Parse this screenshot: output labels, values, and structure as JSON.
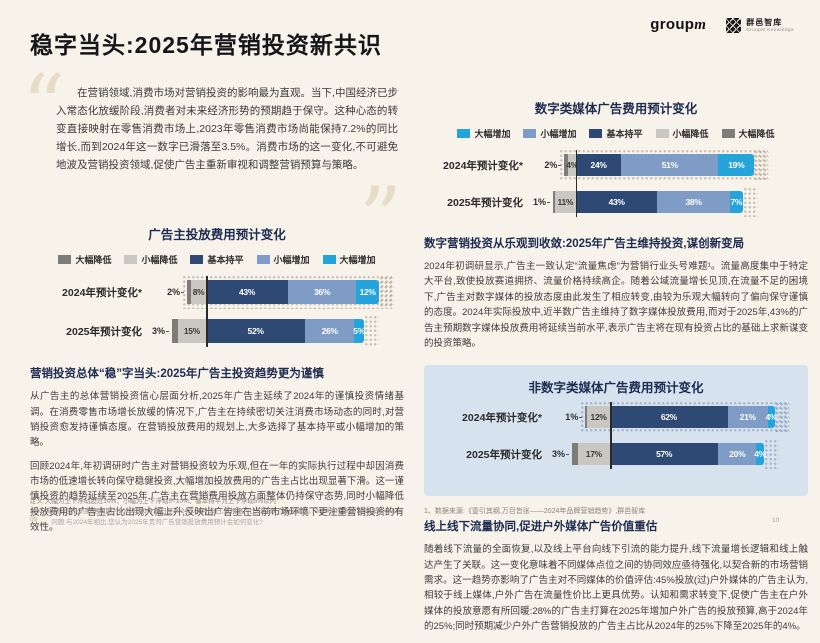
{
  "page": {
    "title": "稳字当头:2025年营销投资新共识",
    "page_no_left": "09",
    "page_no_right": "10"
  },
  "logos": {
    "groupm_text": "group",
    "groupm_m": "m",
    "kb_name": "群邑智库",
    "kb_sub": "GroupM Knowledge"
  },
  "icons": {
    "open_quote": "“",
    "close_quote": "”"
  },
  "quote": {
    "text": "在营销领域,消费市场对营销投资的影响最为直观。当下,中国经济已步入常态化放缓阶段,消费者对未来经济形势的预期趋于保守。这种心态的转变直接映射在零售消费市场上,2023年零售消费市场尚能保持7.2%的同比增长,而到2024年这一数字已滑落至3.5%。消费市场的这一变化,不可避免地波及营销投资领域,促使广告主重新审视和调整营销预算与策略。"
  },
  "palette": {
    "sharp_decrease": {
      "color": "#7c7c79",
      "text": "#ffffff",
      "side": "dec"
    },
    "slight_decrease": {
      "color": "#c9c7c2",
      "text": "#3a3a3a",
      "side": "dec"
    },
    "flat": {
      "color": "#2e4a74",
      "text": "#ffffff",
      "side": "inc"
    },
    "slight_increase": {
      "color": "#7f9cc6",
      "text": "#ffffff",
      "side": "inc"
    },
    "sharp_increase": {
      "color": "#25a4dc",
      "text": "#ffffff",
      "side": "inc"
    }
  },
  "chart_data": [
    {
      "type": "bar",
      "orientation": "horizontal-stacked",
      "title": "广告主投放费用预计变化",
      "legend": [
        {
          "key": "sharp_decrease",
          "label": "大幅降低"
        },
        {
          "key": "slight_decrease",
          "label": "小幅降低"
        },
        {
          "key": "flat",
          "label": "基本持平"
        },
        {
          "key": "slight_increase",
          "label": "小幅增加"
        },
        {
          "key": "sharp_increase",
          "label": "大幅增加"
        }
      ],
      "rows": [
        {
          "label": "2024年预计变化*",
          "outside": "2%",
          "dotted": true,
          "segments": [
            {
              "key": "sharp_decrease",
              "value": 2,
              "text": ""
            },
            {
              "key": "slight_decrease",
              "value": 8,
              "text": "8%"
            },
            {
              "key": "flat",
              "value": 43,
              "text": "43%"
            },
            {
              "key": "slight_increase",
              "value": 36,
              "text": "36%"
            },
            {
              "key": "sharp_increase",
              "value": 12,
              "text": "12%"
            }
          ]
        },
        {
          "label": "2025年预计变化",
          "outside": "3%",
          "dotted": false,
          "segments": [
            {
              "key": "sharp_decrease",
              "value": 3,
              "text": ""
            },
            {
              "key": "slight_decrease",
              "value": 15,
              "text": "15%"
            },
            {
              "key": "flat",
              "value": 52,
              "text": "52%"
            },
            {
              "key": "slight_increase",
              "value": 26,
              "text": "26%"
            },
            {
              "key": "sharp_increase",
              "value": 5,
              "text": "5%"
            }
          ]
        }
      ]
    },
    {
      "type": "bar",
      "orientation": "horizontal-stacked",
      "title": "数字类媒体广告费用预计变化",
      "legend": [
        {
          "key": "sharp_increase",
          "label": "大幅增加"
        },
        {
          "key": "slight_increase",
          "label": "小幅增加"
        },
        {
          "key": "flat",
          "label": "基本持平"
        },
        {
          "key": "slight_decrease",
          "label": "小幅降低"
        },
        {
          "key": "sharp_decrease",
          "label": "大幅降低"
        }
      ],
      "rows": [
        {
          "label": "2024年预计变化*",
          "outside": "2%",
          "dotted": true,
          "segments": [
            {
              "key": "sharp_decrease",
              "value": 2,
              "text": ""
            },
            {
              "key": "slight_decrease",
              "value": 4,
              "text": "4%"
            },
            {
              "key": "flat",
              "value": 24,
              "text": "24%"
            },
            {
              "key": "slight_increase",
              "value": 51,
              "text": "51%"
            },
            {
              "key": "sharp_increase",
              "value": 19,
              "text": "19%"
            }
          ]
        },
        {
          "label": "2025年预计变化",
          "outside": "1%",
          "dotted": false,
          "segments": [
            {
              "key": "sharp_decrease",
              "value": 1,
              "text": ""
            },
            {
              "key": "slight_decrease",
              "value": 11,
              "text": "11%"
            },
            {
              "key": "flat",
              "value": 43,
              "text": "43%"
            },
            {
              "key": "slight_increase",
              "value": 38,
              "text": "38%"
            },
            {
              "key": "sharp_increase",
              "value": 7,
              "text": "7%"
            }
          ]
        }
      ]
    },
    {
      "type": "bar",
      "orientation": "horizontal-stacked",
      "title": "非数字类媒体广告费用预计变化",
      "legend": null,
      "rows": [
        {
          "label": "2024年预计变化*",
          "outside": "1%",
          "dotted": true,
          "segments": [
            {
              "key": "sharp_decrease",
              "value": 1,
              "text": ""
            },
            {
              "key": "slight_decrease",
              "value": 12,
              "text": "12%"
            },
            {
              "key": "flat",
              "value": 62,
              "text": "62%"
            },
            {
              "key": "slight_increase",
              "value": 21,
              "text": "21%"
            },
            {
              "key": "sharp_increase",
              "value": 4,
              "text": "4%"
            }
          ]
        },
        {
          "label": "2025年预计变化",
          "outside": "3%",
          "dotted": false,
          "segments": [
            {
              "key": "sharp_decrease",
              "value": 3,
              "text": ""
            },
            {
              "key": "slight_decrease",
              "value": 17,
              "text": "17%"
            },
            {
              "key": "flat",
              "value": 57,
              "text": "57%"
            },
            {
              "key": "slight_increase",
              "value": 20,
              "text": "20%"
            },
            {
              "key": "sharp_increase",
              "value": 4,
              "text": "4%"
            }
          ]
        }
      ]
    }
  ],
  "sections": {
    "left": {
      "heading": "营销投资总体“稳”字当头:2025年广告主投资趋势更为谨慎",
      "p1": "从广告主的总体营销投资信心层面分析,2025年广告主延续了2024年的谨慎投资情绪基调。在消费零售市场增长放缓的情况下,广告主在持续密切关注消费市场动态的同时,对营销投资愈发持谨慎态度。在营销投放费用的规划上,大多选择了基本持平或小幅增加的策略。",
      "p2": "回顾2024年,年初调研时广告主对营销投资较为乐观,但在一年的实际执行过程中却因消费市场的低速增长转向保守稳健投资,大幅增加投放费用的广告主占比出现显著下滑。这一谨慎投资的趋势延续至2025年,广告主在营销费用投放方面整体仍持保守态势,同时小幅降低投放费用的广告主占比出现大幅上升,反映出广告主在当前市场环境下更注重营销投资的有效性。"
    },
    "digital": {
      "heading": "数字营销投资从乐观到收敛:2025年广告主维持投资,谋创新变局",
      "p1": "2024年初调研显示,广告主一致认定“流量焦虑”为营销行业头号难题¹。流量高度集中于特定大平台,致使投放赛道拥挤、流量价格持续高企。随着公域流量增长见顶,在流量不足的困境下,广告主对数字媒体的投放态度由此发生了相应转变,由较为乐观大幅转向了偏向保守谨慎的态度。2024年实际投放中,近半数广告主维持了数字媒体投放费用,而对于2025年,43%的广告主预期数字媒体投放费用将延续当前水平,表示广告主将在现有投资占比的基础上求新谋变的投资策略。"
    },
    "outdoor": {
      "heading": "线上线下流量协同,促进户外媒体广告价值重估",
      "p1": "随着线下流量的全面恢复,以及线上平台向线下引流的能力提升,线下流量增长逻辑和线上触达产生了关联。这一变化意味着不同媒体点位之间的协同效应亟待强化,以契合新的市场营销需求。这一趋势亦影响了广告主对不同媒体的价值评估:45%投放(过)户外媒体的广告主认为,相较于线上媒体,户外广告在流量性价比上更具优势。认知和需求转变下,促使广告主在户外媒体的投放意愿有所回暖:28%的广告主打算在2025年增加户外广告的投放预算,高于2024年的25%;同时预期减少户外广告营销投放的广告主占比从2024年的25%下降至2025年的4%。"
    }
  },
  "footnotes": {
    "def": "定义:大幅为上下浮动超过10%、小幅为上下浮动5~10%、基本持平为上下浮动5%以内",
    "period": "*2024年预计变化的数据周期为2023年10月30日至2024年01月08日,且根据可比口径做了相应调整。2024年N=334;2025年N=600",
    "question": "问题:与2024年相比,您认为2025年贵司广告营销投放费用预计会如何变化?",
    "source": "1、数据来源:《壹引其纲,万目皆张——2024年品牌营销趋势》,群邑智库"
  }
}
